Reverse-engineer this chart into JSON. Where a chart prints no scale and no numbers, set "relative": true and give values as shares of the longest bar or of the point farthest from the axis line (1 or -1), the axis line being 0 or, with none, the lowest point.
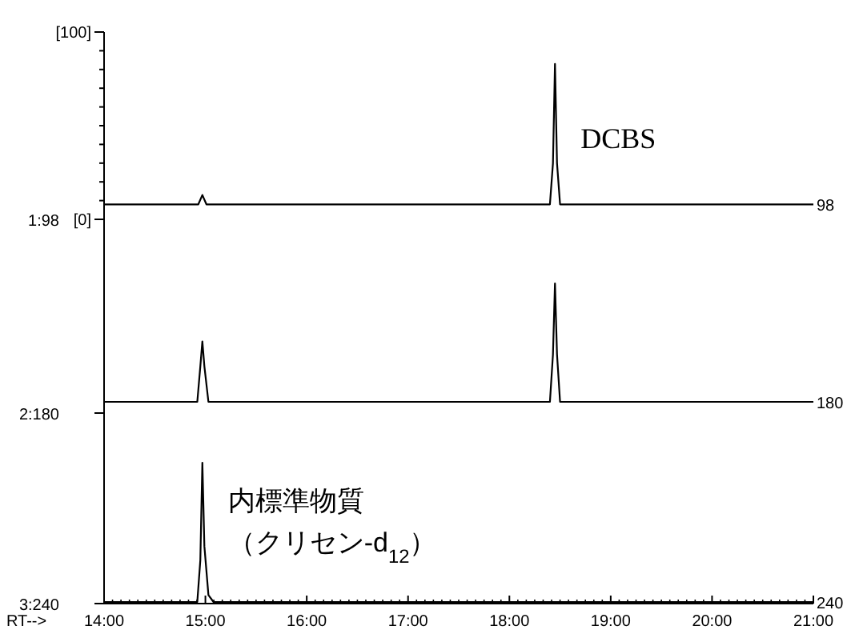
{
  "chart_data": [
    {
      "type": "line",
      "color": "#000000",
      "xlim": [
        14,
        21
      ],
      "ylim": [
        0,
        100
      ],
      "tick_labels": "y",
      "yticks": [
        {
          "value": 0,
          "label": "[0]"
        },
        {
          "value": 10,
          "label": null
        },
        {
          "value": 20,
          "label": null
        },
        {
          "value": 30,
          "label": null
        },
        {
          "value": 40,
          "label": null
        },
        {
          "value": 50,
          "label": null
        },
        {
          "value": 60,
          "label": null
        },
        {
          "value": 70,
          "label": null
        },
        {
          "value": 80,
          "label": null
        },
        {
          "value": 90,
          "label": null
        },
        {
          "value": 100,
          "label": "[100]"
        }
      ],
      "x": [
        14,
        14.5,
        14.93,
        14.97,
        15.01,
        15.5,
        16,
        17,
        18,
        18.4,
        18.43,
        18.45,
        18.47,
        18.5,
        19,
        20,
        21
      ],
      "values": [
        8,
        8,
        8,
        13,
        8,
        8,
        8,
        8,
        8,
        8,
        30,
        83,
        30,
        8,
        8,
        8,
        8
      ],
      "annotations": [
        "1:98",
        "98",
        "DCBS"
      ]
    },
    {
      "type": "line",
      "color": "#000000",
      "xlim": [
        14,
        21
      ],
      "relative": true,
      "tick_labels": false,
      "x": [
        14,
        14.5,
        14.92,
        14.95,
        14.97,
        14.99,
        15.03,
        15.5,
        16,
        17,
        18,
        18.4,
        18.43,
        18.45,
        18.47,
        18.5,
        19,
        20,
        21
      ],
      "values": [
        0,
        0,
        0,
        0.3,
        0.51,
        0.3,
        0,
        0,
        0,
        0,
        0,
        0,
        0.4,
        1,
        0.4,
        0,
        0,
        0,
        0
      ],
      "annotations": [
        "2:180",
        "180"
      ]
    },
    {
      "type": "line",
      "color": "#000000",
      "xlim": [
        14,
        21
      ],
      "relative": true,
      "tick_labels": "x",
      "xlabel": "RT-->",
      "xticks": [
        {
          "value": 14,
          "label": "14:00"
        },
        {
          "value": 15,
          "label": "15:00"
        },
        {
          "value": 16,
          "label": "16:00"
        },
        {
          "value": 17,
          "label": "17:00"
        },
        {
          "value": 18,
          "label": "18:00"
        },
        {
          "value": 19,
          "label": "19:00"
        },
        {
          "value": 20,
          "label": "20:00"
        },
        {
          "value": 21,
          "label": "21:00"
        }
      ],
      "x": [
        14,
        14.5,
        14.92,
        14.95,
        14.97,
        14.99,
        15.03,
        15.08,
        15.5,
        16,
        17,
        18,
        19,
        20,
        21
      ],
      "values": [
        0,
        0,
        0,
        0.3,
        1,
        0.4,
        0.05,
        0,
        0,
        0,
        0,
        0,
        0,
        0,
        0
      ],
      "annotations": [
        "3:240",
        "240",
        "内標準物質",
        "（クリセン-d$_{12}$）"
      ]
    }
  ]
}
